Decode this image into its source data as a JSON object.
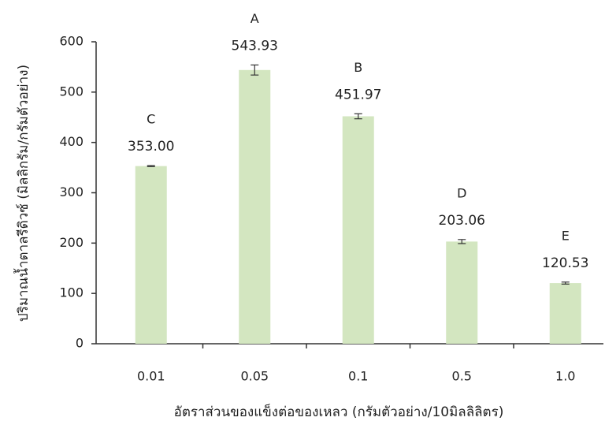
{
  "chart_data": {
    "type": "bar",
    "x_label": "อัตราส่วนของแข็งต่อของเหลว (กรัมตัวอย่าง/10มิลลิลิตร)",
    "y_label": "ปริมาณน้ำตาลรีดิวซ์ (มิลลิกรัม/กรัมตัวอย่าง)",
    "categories": [
      "0.01",
      "0.05",
      "0.1",
      "0.5",
      "1.0"
    ],
    "values": [
      353.0,
      543.93,
      451.97,
      203.06,
      120.53
    ],
    "value_labels": [
      "353.00",
      "543.93",
      "451.97",
      "203.06",
      "120.53"
    ],
    "errors": [
      1,
      10,
      5,
      4,
      2
    ],
    "letters": [
      "C",
      "A",
      "B",
      "D",
      "E"
    ],
    "color": "#d3e6c0",
    "ylim": [
      0,
      600
    ],
    "yticks": [
      0,
      100,
      200,
      300,
      400,
      500,
      600
    ]
  }
}
